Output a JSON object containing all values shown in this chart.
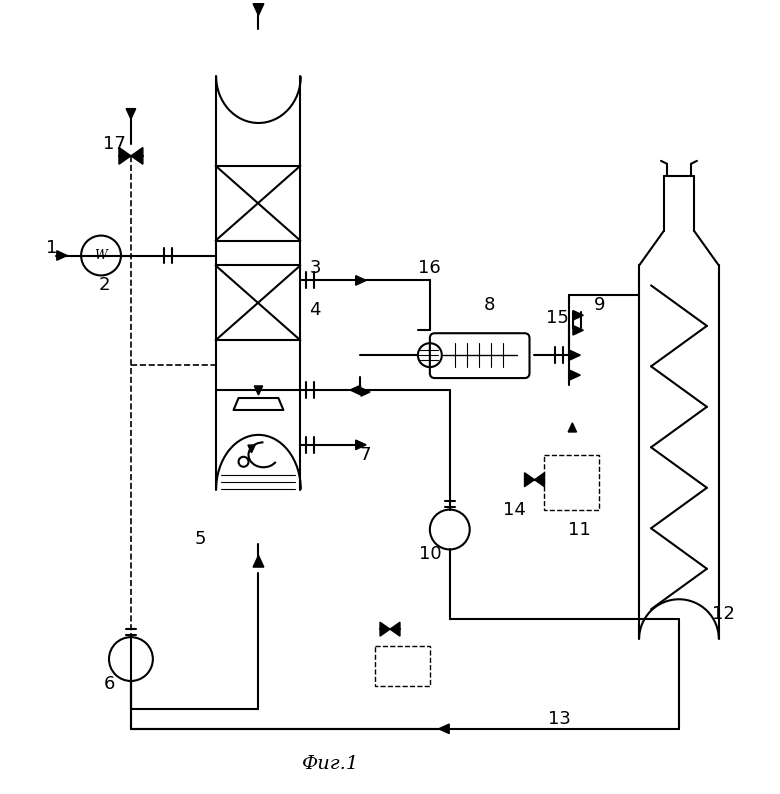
{
  "title": "Фиг.1",
  "background": "#ffffff",
  "line_color": "#000000",
  "lw": 1.5,
  "figsize": [
    7.8,
    7.94
  ]
}
